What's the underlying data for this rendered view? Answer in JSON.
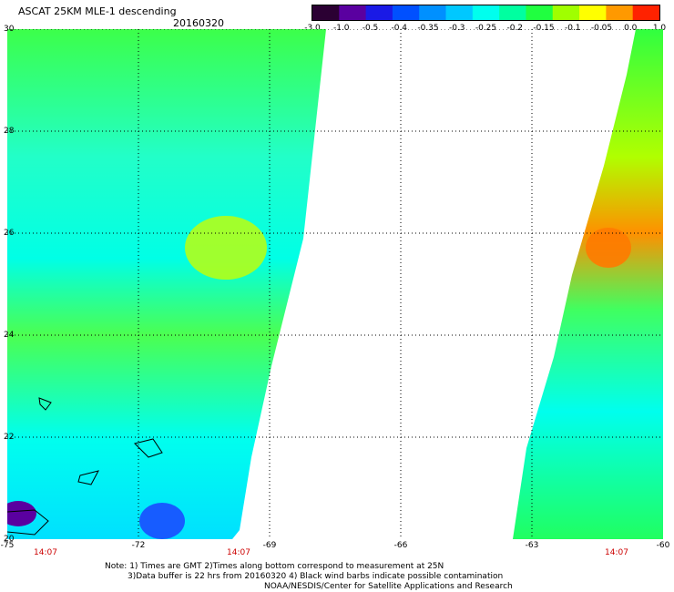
{
  "header": {
    "title": "ASCAT 25KM MLE-1 descending",
    "date": "20160320"
  },
  "colorbar": {
    "labels": [
      "-3.0",
      "-1.0",
      "-0.5",
      "-0.4",
      "-0.35",
      "-0.3",
      "-0.25",
      "-0.2",
      "-0.15",
      "-0.1",
      "-0.05",
      "0.0",
      "1.0"
    ],
    "colors": [
      "#2b0033",
      "#5a00a0",
      "#1a1ae6",
      "#0050ff",
      "#0090ff",
      "#00c8ff",
      "#00ffee",
      "#00ffa0",
      "#20ff40",
      "#a0ff00",
      "#ffff00",
      "#ff9900",
      "#ff2200"
    ]
  },
  "map": {
    "x_ticks": [
      "-75",
      "-72",
      "-69",
      "-66",
      "-63",
      "-60"
    ],
    "y_ticks": [
      "30",
      "28",
      "26",
      "24",
      "22",
      "20"
    ],
    "time_labels": [
      "14:07",
      "14:07",
      "14:07"
    ]
  },
  "notes": {
    "line1": "Note: 1) Times are GMT 2)Times along bottom correspond to measurement at 25N",
    "line2": "3)Data buffer is 22 hrs from 20160320 4) Black wind barbs indicate possible contamination",
    "line3": "NOAA/NESDIS/Center for Satellite Applications and Research"
  }
}
